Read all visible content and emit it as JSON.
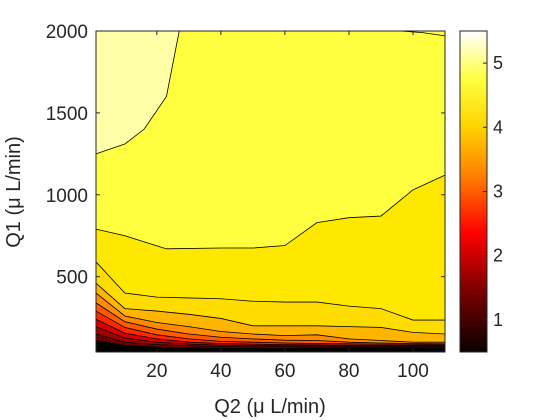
{
  "chart_data": {
    "type": "contour",
    "xlabel": "Q2 (μ L/min)",
    "ylabel": "Q1 (μ L/min)",
    "xlim": [
      1,
      110
    ],
    "ylim": [
      40,
      2000
    ],
    "xticks": [
      20,
      40,
      60,
      80,
      100
    ],
    "yticks": [
      500,
      1000,
      1500,
      2000
    ],
    "colorbar": {
      "colormap": "hot",
      "range": [
        0.5,
        5.5
      ],
      "ticks": [
        1,
        2,
        3,
        4,
        5
      ]
    },
    "levels": [
      {
        "level": 5.0,
        "color": "#ffffa8",
        "boundary": [
          [
            1,
            1250
          ],
          [
            10,
            1310
          ],
          [
            16,
            1400
          ],
          [
            23,
            1600
          ],
          [
            27,
            2000
          ]
        ]
      },
      {
        "level": 4.5,
        "color": "#ffff40",
        "boundary": [
          [
            1,
            790
          ],
          [
            10,
            750
          ],
          [
            23,
            670
          ],
          [
            40,
            675
          ],
          [
            50,
            675
          ],
          [
            60,
            690
          ],
          [
            70,
            830
          ],
          [
            80,
            860
          ],
          [
            90,
            870
          ],
          [
            100,
            1030
          ],
          [
            110,
            1120
          ]
        ]
      },
      {
        "level": 4.0,
        "color": "#ffdc00",
        "boundary": [
          [
            1,
            590
          ],
          [
            10,
            400
          ],
          [
            20,
            375
          ],
          [
            30,
            370
          ],
          [
            40,
            365
          ],
          [
            50,
            350
          ],
          [
            60,
            345
          ],
          [
            70,
            345
          ],
          [
            80,
            320
          ],
          [
            90,
            305
          ],
          [
            100,
            235
          ],
          [
            110,
            235
          ]
        ]
      },
      {
        "level": 3.5,
        "color": "#ffb400",
        "boundary": [
          [
            1,
            460
          ],
          [
            10,
            305
          ],
          [
            20,
            290
          ],
          [
            30,
            270
          ],
          [
            40,
            245
          ],
          [
            50,
            200
          ],
          [
            60,
            200
          ],
          [
            70,
            200
          ],
          [
            80,
            195
          ],
          [
            90,
            190
          ],
          [
            100,
            160
          ],
          [
            110,
            150
          ]
        ]
      },
      {
        "level": 3.0,
        "color": "#ff8c00",
        "boundary": [
          [
            1,
            400
          ],
          [
            10,
            260
          ],
          [
            20,
            220
          ],
          [
            30,
            195
          ],
          [
            40,
            165
          ],
          [
            50,
            150
          ],
          [
            60,
            140
          ],
          [
            70,
            145
          ],
          [
            80,
            120
          ],
          [
            90,
            110
          ],
          [
            100,
            100
          ],
          [
            110,
            100
          ]
        ]
      },
      {
        "level": 2.5,
        "color": "#ff5a00",
        "boundary": [
          [
            1,
            340
          ],
          [
            10,
            225
          ],
          [
            20,
            180
          ],
          [
            30,
            150
          ],
          [
            40,
            130
          ],
          [
            50,
            120
          ],
          [
            60,
            112
          ],
          [
            70,
            110
          ],
          [
            80,
            100
          ],
          [
            90,
            95
          ],
          [
            100,
            92
          ],
          [
            110,
            90
          ]
        ]
      },
      {
        "level": 2.0,
        "color": "#ff2800",
        "boundary": [
          [
            1,
            290
          ],
          [
            10,
            190
          ],
          [
            20,
            145
          ],
          [
            30,
            120
          ],
          [
            40,
            105
          ],
          [
            50,
            100
          ],
          [
            60,
            95
          ],
          [
            70,
            92
          ],
          [
            80,
            90
          ],
          [
            90,
            88
          ],
          [
            100,
            87
          ],
          [
            110,
            86
          ]
        ]
      },
      {
        "level": 1.5,
        "color": "#d70000",
        "boundary": [
          [
            1,
            240
          ],
          [
            10,
            155
          ],
          [
            20,
            120
          ],
          [
            30,
            100
          ],
          [
            40,
            92
          ],
          [
            50,
            88
          ],
          [
            60,
            85
          ],
          [
            70,
            84
          ],
          [
            80,
            82
          ],
          [
            90,
            81
          ],
          [
            100,
            80
          ],
          [
            110,
            80
          ]
        ]
      },
      {
        "level": 1.2,
        "color": "#a00000",
        "boundary": [
          [
            1,
            195
          ],
          [
            10,
            125
          ],
          [
            20,
            100
          ],
          [
            30,
            88
          ],
          [
            40,
            82
          ],
          [
            50,
            80
          ],
          [
            60,
            78
          ],
          [
            70,
            78
          ],
          [
            80,
            77
          ],
          [
            90,
            76
          ],
          [
            100,
            76
          ],
          [
            110,
            76
          ]
        ]
      },
      {
        "level": 1.0,
        "color": "#6e0000",
        "boundary": [
          [
            1,
            150
          ],
          [
            10,
            100
          ],
          [
            20,
            85
          ],
          [
            30,
            78
          ],
          [
            40,
            74
          ],
          [
            50,
            72
          ],
          [
            60,
            72
          ],
          [
            70,
            71
          ],
          [
            80,
            70
          ],
          [
            90,
            70
          ],
          [
            100,
            70
          ],
          [
            110,
            70
          ]
        ]
      },
      {
        "level": 0.7,
        "color": "#000000",
        "boundary": [
          [
            1,
            110
          ],
          [
            10,
            80
          ],
          [
            20,
            70
          ],
          [
            30,
            65
          ],
          [
            40,
            64
          ],
          [
            50,
            63
          ],
          [
            60,
            63
          ],
          [
            70,
            63
          ],
          [
            80,
            63
          ],
          [
            90,
            63
          ],
          [
            100,
            63
          ],
          [
            110,
            63
          ]
        ]
      }
    ],
    "base_level": 4.5,
    "base_color": "#ffe800",
    "top_right_contour": [
      [
        96,
        2000
      ],
      [
        103,
        1990
      ],
      [
        110,
        1970
      ]
    ]
  }
}
